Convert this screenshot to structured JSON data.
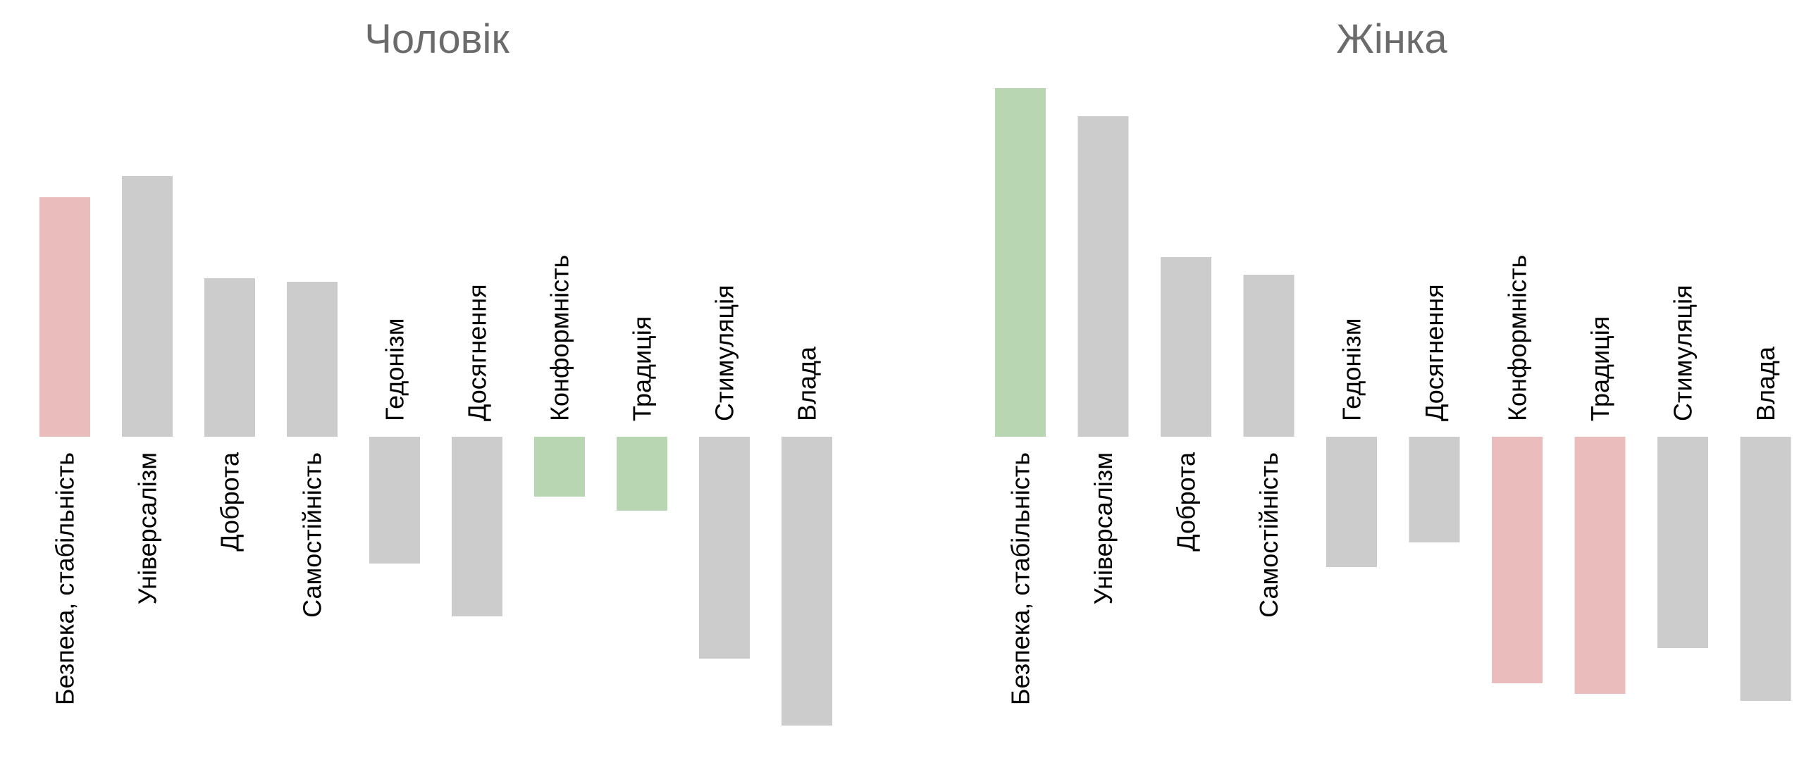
{
  "colors": {
    "neutral": "#cccccc",
    "positive": "#b9d6b2",
    "negative": "#eabcbc",
    "title": "#6b6b6b",
    "label": "#000000",
    "background": "#ffffff"
  },
  "chart_data": [
    {
      "type": "bar",
      "title": "Чоловік",
      "xlabel": "",
      "ylabel": "",
      "ylim": [
        -4.0,
        5.0
      ],
      "grid": false,
      "legend": "none",
      "categories": [
        "Безпека, стабільність",
        "Універсалізм",
        "Доброта",
        "Самостійність",
        "Гедонізм",
        "Досягнення",
        "Конформність",
        "Традиція",
        "Стимуляція",
        "Влада"
      ],
      "values": [
        3.4,
        3.7,
        2.25,
        2.2,
        -1.8,
        -2.55,
        -0.85,
        -1.05,
        -3.15,
        -4.1
      ],
      "bar_highlight": [
        "negative",
        "neutral",
        "neutral",
        "neutral",
        "neutral",
        "neutral",
        "positive",
        "positive",
        "neutral",
        "neutral"
      ]
    },
    {
      "type": "bar",
      "title": "Жінка",
      "xlabel": "",
      "ylabel": "",
      "ylim": [
        -4.0,
        5.0
      ],
      "grid": false,
      "legend": "none",
      "categories": [
        "Безпека, стабільність",
        "Універсалізм",
        "Доброта",
        "Самостійність",
        "Гедонізм",
        "Досягнення",
        "Конформність",
        "Традиція",
        "Стимуляція",
        "Влада"
      ],
      "values": [
        4.95,
        4.55,
        2.55,
        2.3,
        -1.85,
        -1.5,
        -3.5,
        -3.65,
        -3.0,
        -3.75
      ],
      "bar_highlight": [
        "positive",
        "neutral",
        "neutral",
        "neutral",
        "neutral",
        "neutral",
        "negative",
        "negative",
        "neutral",
        "neutral"
      ]
    }
  ]
}
